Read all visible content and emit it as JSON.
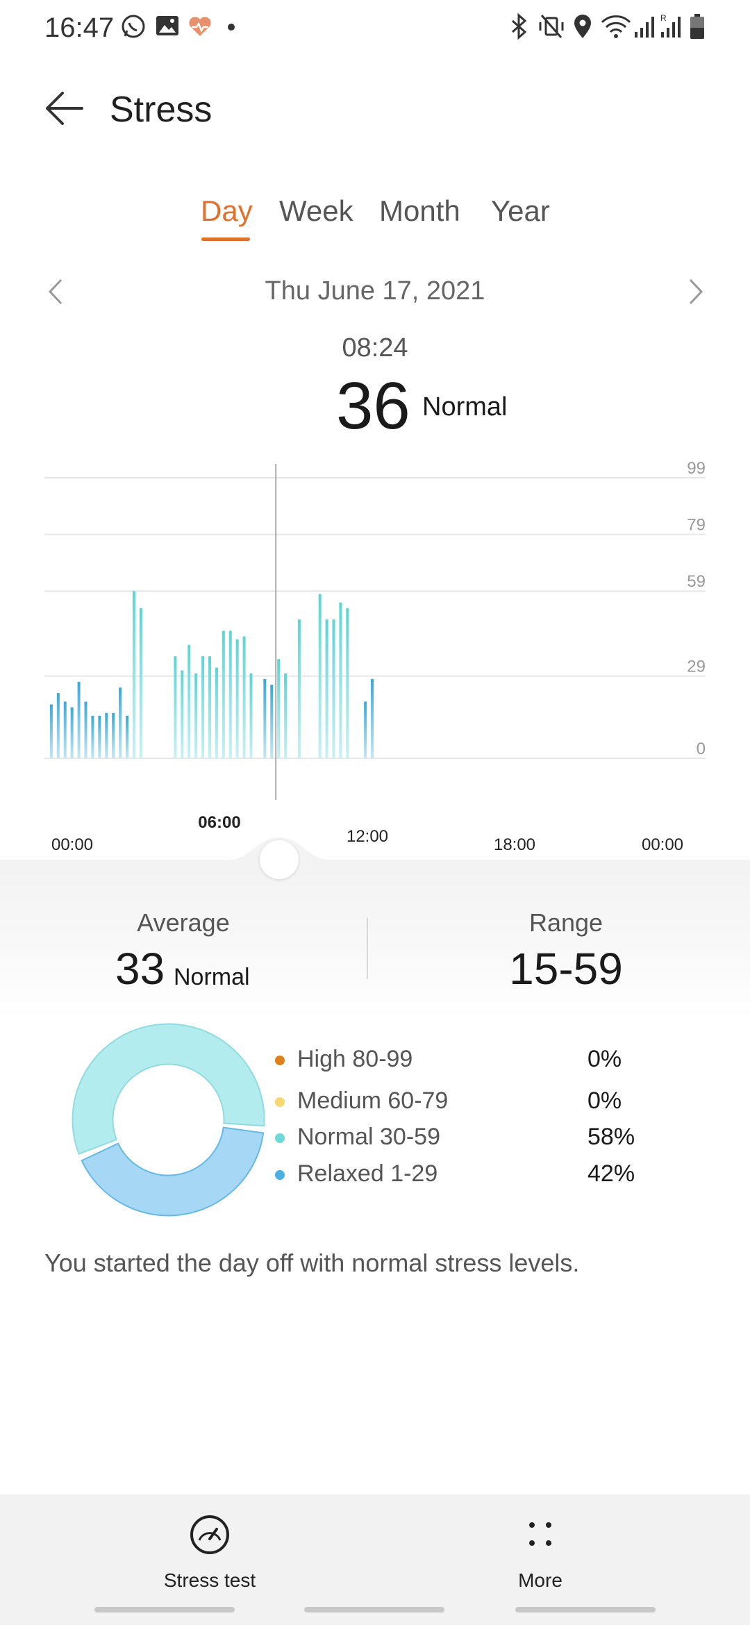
{
  "status_bar": {
    "time": "16:47",
    "left_icons": [
      "whatsapp-icon",
      "gallery-icon",
      "health-heart-icon",
      "dot-icon"
    ],
    "right_icons": [
      "bluetooth-icon",
      "vibrate-off-icon",
      "location-icon",
      "wifi-icon",
      "signal-icon",
      "signal-roaming-icon",
      "battery-icon"
    ]
  },
  "header": {
    "title": "Stress"
  },
  "tabs": [
    {
      "label": "Day",
      "active": true
    },
    {
      "label": "Week",
      "active": false
    },
    {
      "label": "Month",
      "active": false
    },
    {
      "label": "Year",
      "active": false
    }
  ],
  "date_nav": {
    "date": "Thu June 17, 2021"
  },
  "selected": {
    "time": "08:24",
    "value": "36",
    "status": "Normal"
  },
  "colors": {
    "accent": "#e0702e",
    "high": "#e0801a",
    "medium": "#f8d770",
    "normal": "#6fd8d8",
    "relaxed": "#4ab0e4",
    "donut_normal": "#b3ecee",
    "donut_relaxed": "#a6d8f6"
  },
  "chart_data": {
    "type": "bar",
    "y_ticks": [
      "99",
      "79",
      "59",
      "29",
      "0"
    ],
    "x_ticks": [
      "00:00",
      "06:00",
      "12:00",
      "18:00",
      "00:00"
    ],
    "x_ticks_highlight": "06:00",
    "ylim": [
      0,
      99
    ],
    "x_range_hours": [
      0,
      24
    ],
    "selected_time_hours": 8.4,
    "series": [
      {
        "points": [
          {
            "t": 0.25,
            "v": 19
          },
          {
            "t": 0.5,
            "v": 23
          },
          {
            "t": 0.75,
            "v": 20
          },
          {
            "t": 1.0,
            "v": 18
          },
          {
            "t": 1.25,
            "v": 27
          },
          {
            "t": 1.5,
            "v": 20
          },
          {
            "t": 1.75,
            "v": 15
          },
          {
            "t": 2.0,
            "v": 15
          },
          {
            "t": 2.25,
            "v": 16
          },
          {
            "t": 2.5,
            "v": 16
          },
          {
            "t": 2.75,
            "v": 25
          },
          {
            "t": 3.0,
            "v": 15
          },
          {
            "t": 3.25,
            "v": 59
          },
          {
            "t": 3.5,
            "v": 53
          },
          {
            "t": 4.75,
            "v": 36
          },
          {
            "t": 5.0,
            "v": 31
          },
          {
            "t": 5.25,
            "v": 40
          },
          {
            "t": 5.5,
            "v": 30
          },
          {
            "t": 5.75,
            "v": 36
          },
          {
            "t": 6.0,
            "v": 36
          },
          {
            "t": 6.25,
            "v": 32
          },
          {
            "t": 6.5,
            "v": 45
          },
          {
            "t": 6.75,
            "v": 45
          },
          {
            "t": 7.0,
            "v": 42
          },
          {
            "t": 7.25,
            "v": 43
          },
          {
            "t": 7.5,
            "v": 30
          },
          {
            "t": 8.0,
            "v": 28
          },
          {
            "t": 8.25,
            "v": 26
          },
          {
            "t": 8.5,
            "v": 35
          },
          {
            "t": 8.75,
            "v": 30
          },
          {
            "t": 9.25,
            "v": 49
          },
          {
            "t": 10.0,
            "v": 58
          },
          {
            "t": 10.25,
            "v": 49
          },
          {
            "t": 10.5,
            "v": 49
          },
          {
            "t": 10.75,
            "v": 55
          },
          {
            "t": 11.0,
            "v": 53
          },
          {
            "t": 11.65,
            "v": 20
          },
          {
            "t": 11.9,
            "v": 28
          }
        ]
      }
    ]
  },
  "stats": {
    "average_label": "Average",
    "average_value": "33",
    "average_status": "Normal",
    "range_label": "Range",
    "range_value": "15-59"
  },
  "distribution": [
    {
      "label": "High 80-99",
      "percent": "0%",
      "fraction": 0,
      "color": "#e0801a"
    },
    {
      "label": "Medium 60-79",
      "percent": "0%",
      "fraction": 0,
      "color": "#f8d770"
    },
    {
      "label": "Normal 30-59",
      "percent": "58%",
      "fraction": 0.58,
      "color": "#6fd8d8"
    },
    {
      "label": "Relaxed 1-29",
      "percent": "42%",
      "fraction": 0.42,
      "color": "#4ab0e4"
    }
  ],
  "summary": "You started the day off with normal stress levels.",
  "actions": [
    {
      "label": "Stress test",
      "icon": "gauge-icon"
    },
    {
      "label": "More",
      "icon": "more-dots-icon"
    }
  ]
}
